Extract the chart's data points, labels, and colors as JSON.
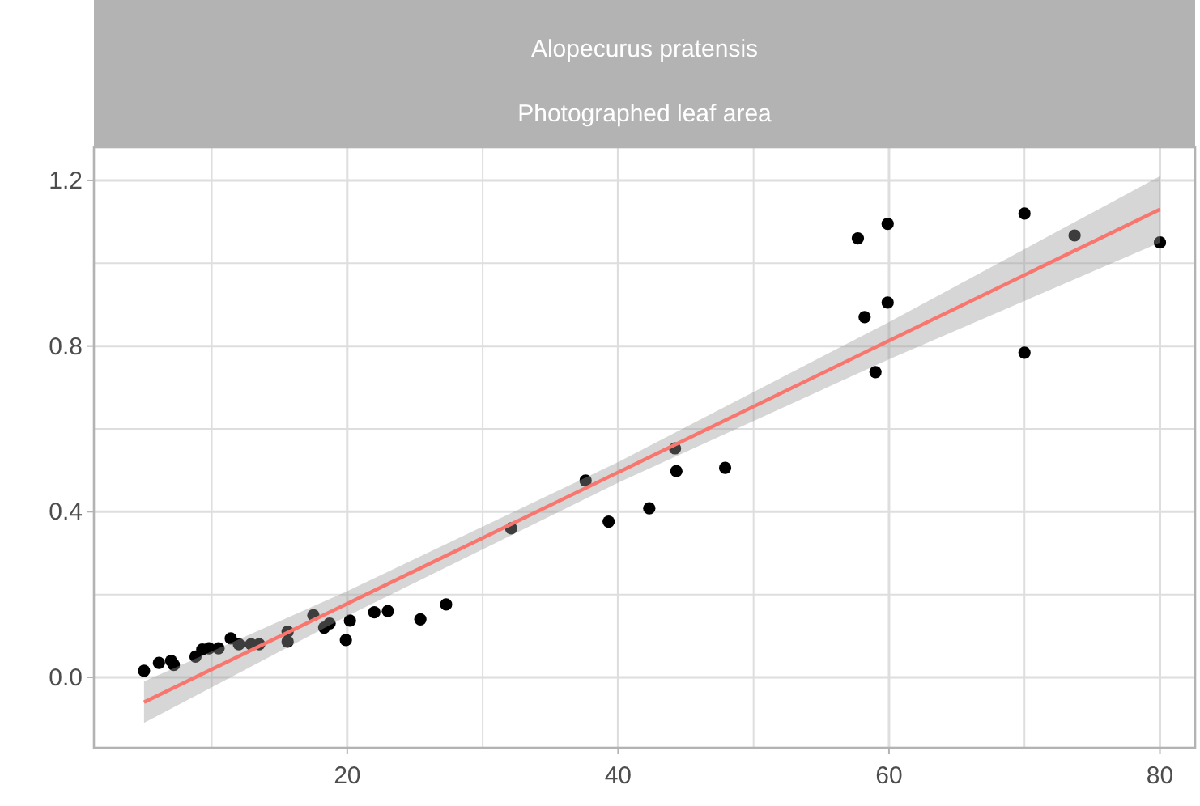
{
  "chart_data": {
    "type": "scatter",
    "title": "Alopecurus pratensis",
    "subtitle": "Photographed leaf area",
    "xlim": [
      1.3,
      82.6
    ],
    "ylim": [
      -0.17,
      1.28
    ],
    "xticks": [
      {
        "value": 10,
        "label": null
      },
      20,
      {
        "value": 30,
        "label": null
      },
      40,
      {
        "value": 50,
        "label": null
      },
      60,
      {
        "value": 70,
        "label": null
      },
      80
    ],
    "yticks": [
      "0.0",
      {
        "value": 0.2,
        "label": null
      },
      0.4,
      {
        "value": 0.6,
        "label": null
      },
      0.8,
      {
        "value": 1.0,
        "label": null
      },
      1.2
    ],
    "grid": true,
    "marker": "circle",
    "series": [
      {
        "color": "#000000",
        "x": [
          5.0,
          6.1,
          7.0,
          7.2,
          8.8,
          9.3,
          9.8,
          10.5,
          11.4,
          12.0,
          12.9,
          13.5,
          15.6,
          15.6,
          17.5,
          18.3,
          18.7,
          19.9,
          20.2,
          22.0,
          23.0,
          25.4,
          27.3,
          32.1,
          37.6,
          39.3,
          42.3,
          44.2,
          44.3,
          47.9,
          57.7,
          59.9,
          58.2,
          59.9,
          59.0,
          70.0,
          70.0,
          73.7,
          80.0
        ],
        "values": [
          0.016,
          0.035,
          0.04,
          0.03,
          0.05,
          0.067,
          0.07,
          0.07,
          0.094,
          0.08,
          0.08,
          0.08,
          0.086,
          0.11,
          0.15,
          0.12,
          0.13,
          0.09,
          0.137,
          0.157,
          0.16,
          0.14,
          0.176,
          0.36,
          0.475,
          0.376,
          0.408,
          0.553,
          0.498,
          0.506,
          1.06,
          1.095,
          0.87,
          0.905,
          0.737,
          1.12,
          0.784,
          1.067,
          1.05
        ]
      },
      {
        "type": "line",
        "color": "#f8766d",
        "marker": "none",
        "x": [
          5,
          20,
          40,
          60,
          80
        ],
        "values": [
          -0.06,
          0.178,
          0.495,
          0.813,
          1.13
        ],
        "lower": [
          -0.11,
          0.148,
          0.47,
          0.768,
          1.05
        ],
        "upper": [
          -0.01,
          0.208,
          0.52,
          0.858,
          1.21
        ]
      }
    ]
  }
}
